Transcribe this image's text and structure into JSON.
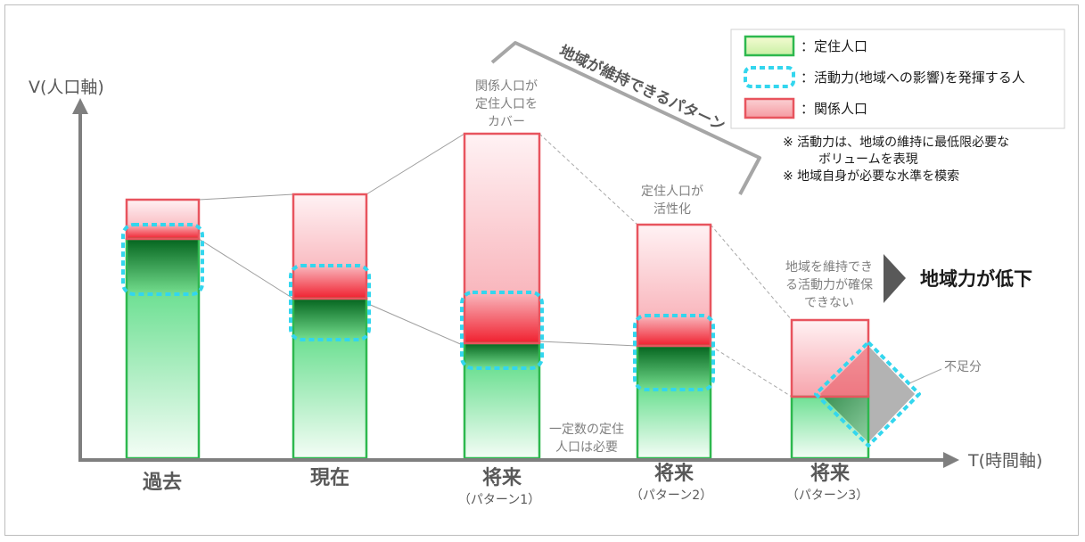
{
  "axes": {
    "y_label": "V(人口軸)",
    "x_label": "T(時間軸)"
  },
  "legend": {
    "items": [
      {
        "key": "settled",
        "label": "：定住人口"
      },
      {
        "key": "active",
        "label": "：活動力(地域への影響)を発揮する人"
      },
      {
        "key": "related",
        "label": "：関係人口"
      }
    ]
  },
  "notes": [
    "※ 活動力は、地域の維持に最低限必要な",
    "ボリュームを表現",
    "※ 地域自身が必要な水準を模索"
  ],
  "pattern_bracket_label": "地域が維持できるパターン",
  "bars": [
    {
      "id": "past",
      "label": "過去",
      "sublabel": ""
    },
    {
      "id": "present",
      "label": "現在",
      "sublabel": ""
    },
    {
      "id": "future1",
      "label": "将来",
      "sublabel": "（パターン1）"
    },
    {
      "id": "future2",
      "label": "将来",
      "sublabel": "（パターン2）"
    },
    {
      "id": "future3",
      "label": "将来",
      "sublabel": "（パターン3）"
    }
  ],
  "annotations": {
    "related_covers": [
      "関係人口が",
      "定住人口を",
      "カバー"
    ],
    "settled_activated": [
      "定住人口が",
      "活性化"
    ],
    "cannot_secure": [
      "地域を維持でき",
      "る活動力が確保",
      "できない"
    ],
    "decline": "地域力が低下",
    "shortage": "不足分",
    "minimum_settled": [
      "一定数の定住",
      "人口は必要"
    ]
  },
  "colors": {
    "axis": "#7f7f7f",
    "settled_border": "#2db84e",
    "related_border": "#e8545e",
    "active_border": "#33d6ee",
    "annotation_text": "#7f7f7f",
    "arrow": "#595959",
    "shortage_fill": "#b3b3b3"
  }
}
